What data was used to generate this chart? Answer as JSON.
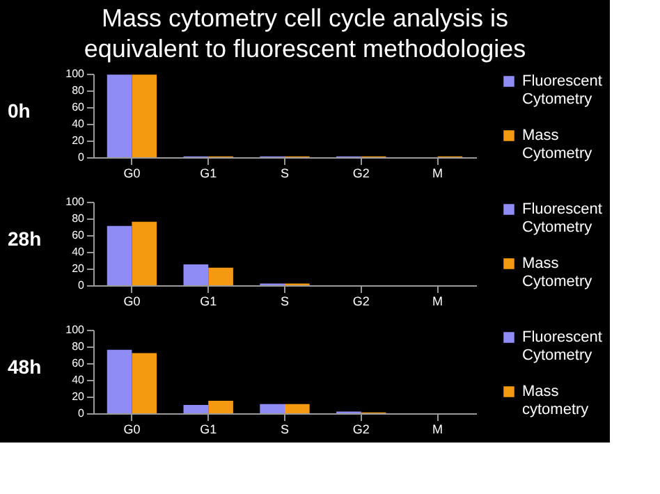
{
  "chart_data": [
    {
      "type": "bar",
      "title": "Mass cytometry cell cycle analysis is equivalent to fluorescent methodologies",
      "ylabel": "0h",
      "categories": [
        "G0",
        "G1",
        "S",
        "G2",
        "M"
      ],
      "ylim": [
        0,
        100
      ],
      "yticks": [
        0,
        20,
        40,
        60,
        80,
        100
      ],
      "legend": "right",
      "series": [
        {
          "name": "Fluorescent Cytometry",
          "color": "#8f8cf5",
          "values": [
            99,
            1,
            1,
            1,
            0
          ]
        },
        {
          "name": "Mass Cytometry",
          "color": "#f39a10",
          "values": [
            99,
            1,
            1,
            1,
            1
          ]
        }
      ]
    },
    {
      "type": "bar",
      "ylabel": "28h",
      "categories": [
        "G0",
        "G1",
        "S",
        "G2",
        "M"
      ],
      "ylim": [
        0,
        100
      ],
      "yticks": [
        0,
        20,
        40,
        60,
        80,
        100
      ],
      "legend": "right",
      "series": [
        {
          "name": "Fluorescent Cytometry",
          "color": "#8f8cf5",
          "values": [
            71,
            25,
            2,
            0,
            0
          ]
        },
        {
          "name": "Mass Cytometry",
          "color": "#f39a10",
          "values": [
            76,
            21,
            2,
            0,
            0
          ]
        }
      ]
    },
    {
      "type": "bar",
      "ylabel": "48h",
      "categories": [
        "G0",
        "G1",
        "S",
        "G2",
        "M"
      ],
      "ylim": [
        0,
        100
      ],
      "yticks": [
        0,
        20,
        40,
        60,
        80,
        100
      ],
      "legend": "right",
      "series": [
        {
          "name": "Fluorescent Cytometry",
          "color": "#8f8cf5",
          "values": [
            76,
            10,
            11,
            2,
            0
          ]
        },
        {
          "name": "Mass cytometry",
          "color": "#f39a10",
          "values": [
            72,
            15,
            11,
            1,
            0
          ]
        }
      ]
    }
  ]
}
